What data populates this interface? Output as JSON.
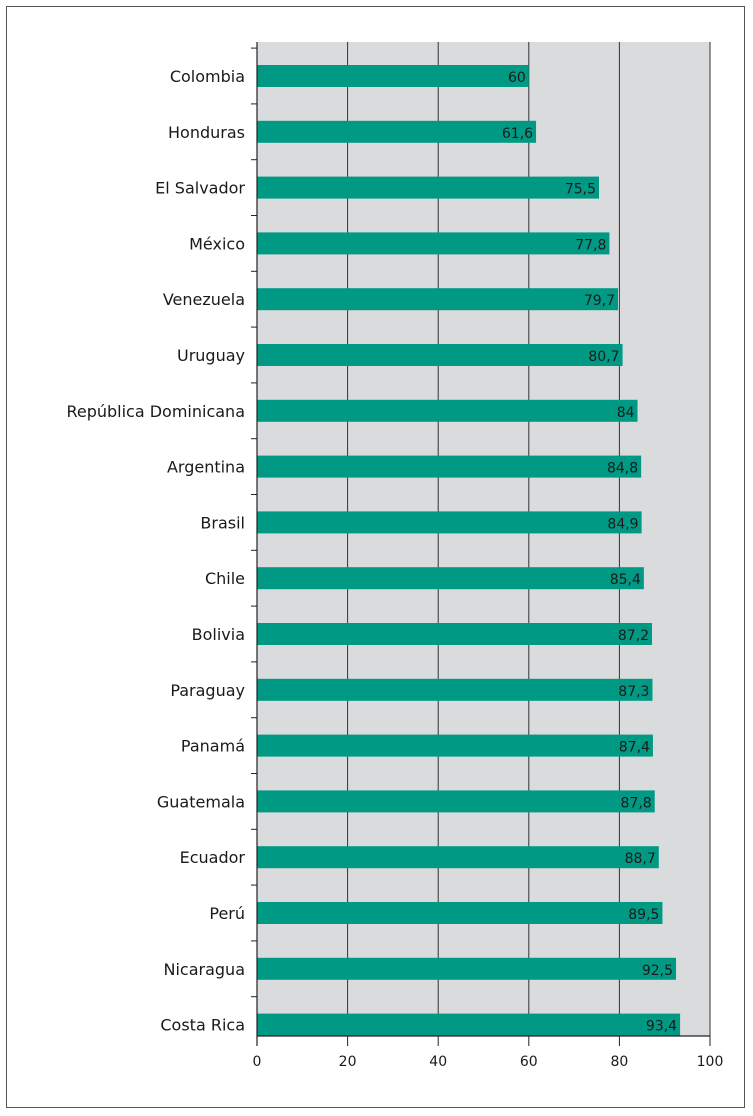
{
  "chart_data": {
    "type": "bar",
    "orientation": "horizontal",
    "categories": [
      "Colombia",
      "Honduras",
      "El Salvador",
      "México",
      "Venezuela",
      "Uruguay",
      "República Dominicana",
      "Argentina",
      "Brasil",
      "Chile",
      "Bolivia",
      "Paraguay",
      "Panamá",
      "Guatemala",
      "Ecuador",
      "Perú",
      "Nicaragua",
      "Costa Rica"
    ],
    "values": [
      60,
      61.6,
      75.5,
      77.8,
      79.7,
      80.7,
      84,
      84.8,
      84.9,
      85.4,
      87.2,
      87.3,
      87.4,
      87.8,
      88.7,
      89.5,
      92.5,
      93.4
    ],
    "value_labels": [
      "60",
      "61,6",
      "75,5",
      "77,8",
      "79,7",
      "80,7",
      "84",
      "84,8",
      "84,9",
      "85,4",
      "87,2",
      "87,3",
      "87,4",
      "87,8",
      "88,7",
      "89,5",
      "92,5",
      "93,4"
    ],
    "xlim": [
      0,
      100
    ],
    "xticks": [
      0,
      20,
      40,
      60,
      80,
      100
    ],
    "xtick_labels": [
      "0",
      "20",
      "40",
      "60",
      "80",
      "100"
    ],
    "grid": true,
    "colors": {
      "bar": "#009a84",
      "plot_background": "#dadbdd",
      "grid": "#333333"
    }
  }
}
